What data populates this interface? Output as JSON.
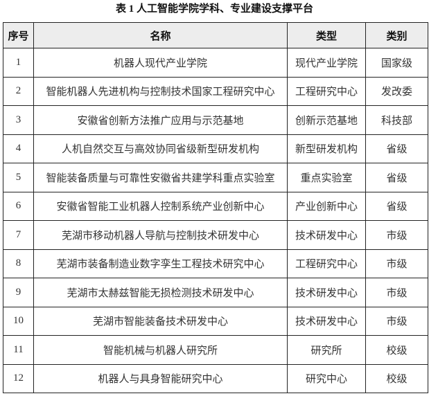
{
  "title": "表 1  人工智能学院学科、专业建设支撑平台",
  "headers": [
    "序号",
    "名称",
    "类型",
    "类别"
  ],
  "rows": [
    [
      "1",
      "机器人现代产业学院",
      "现代产业学院",
      "国家级"
    ],
    [
      "2",
      "智能机器人先进机构与控制技术国家工程研究中心",
      "工程研究中心",
      "发改委"
    ],
    [
      "3",
      "安徽省创新方法推广应用与示范基地",
      "创新示范基地",
      "科技部"
    ],
    [
      "4",
      "人机自然交互与高效协同省级新型研发机构",
      "新型研发机构",
      "省级"
    ],
    [
      "5",
      "智能装备质量与可靠性安徽省共建学科重点实验室",
      "重点实验室",
      "省级"
    ],
    [
      "6",
      "安徽省智能工业机器人控制系统产业创新中心",
      "产业创新中心",
      "省级"
    ],
    [
      "7",
      "芜湖市移动机器人导航与控制技术研发中心",
      "技术研发中心",
      "市级"
    ],
    [
      "8",
      "芜湖市装备制造业数字孪生工程技术研究中心",
      "工程研究中心",
      "市级"
    ],
    [
      "9",
      "芜湖市太赫兹智能无损检测技术研发中心",
      "技术研发中心",
      "市级"
    ],
    [
      "10",
      "芜湖市智能装备技术研发中心",
      "技术研发中心",
      "市级"
    ],
    [
      "11",
      "智能机械与机器人研究所",
      "研究所",
      "校级"
    ],
    [
      "12",
      "机器人与具身智能研究中心",
      "研究中心",
      "校级"
    ]
  ]
}
